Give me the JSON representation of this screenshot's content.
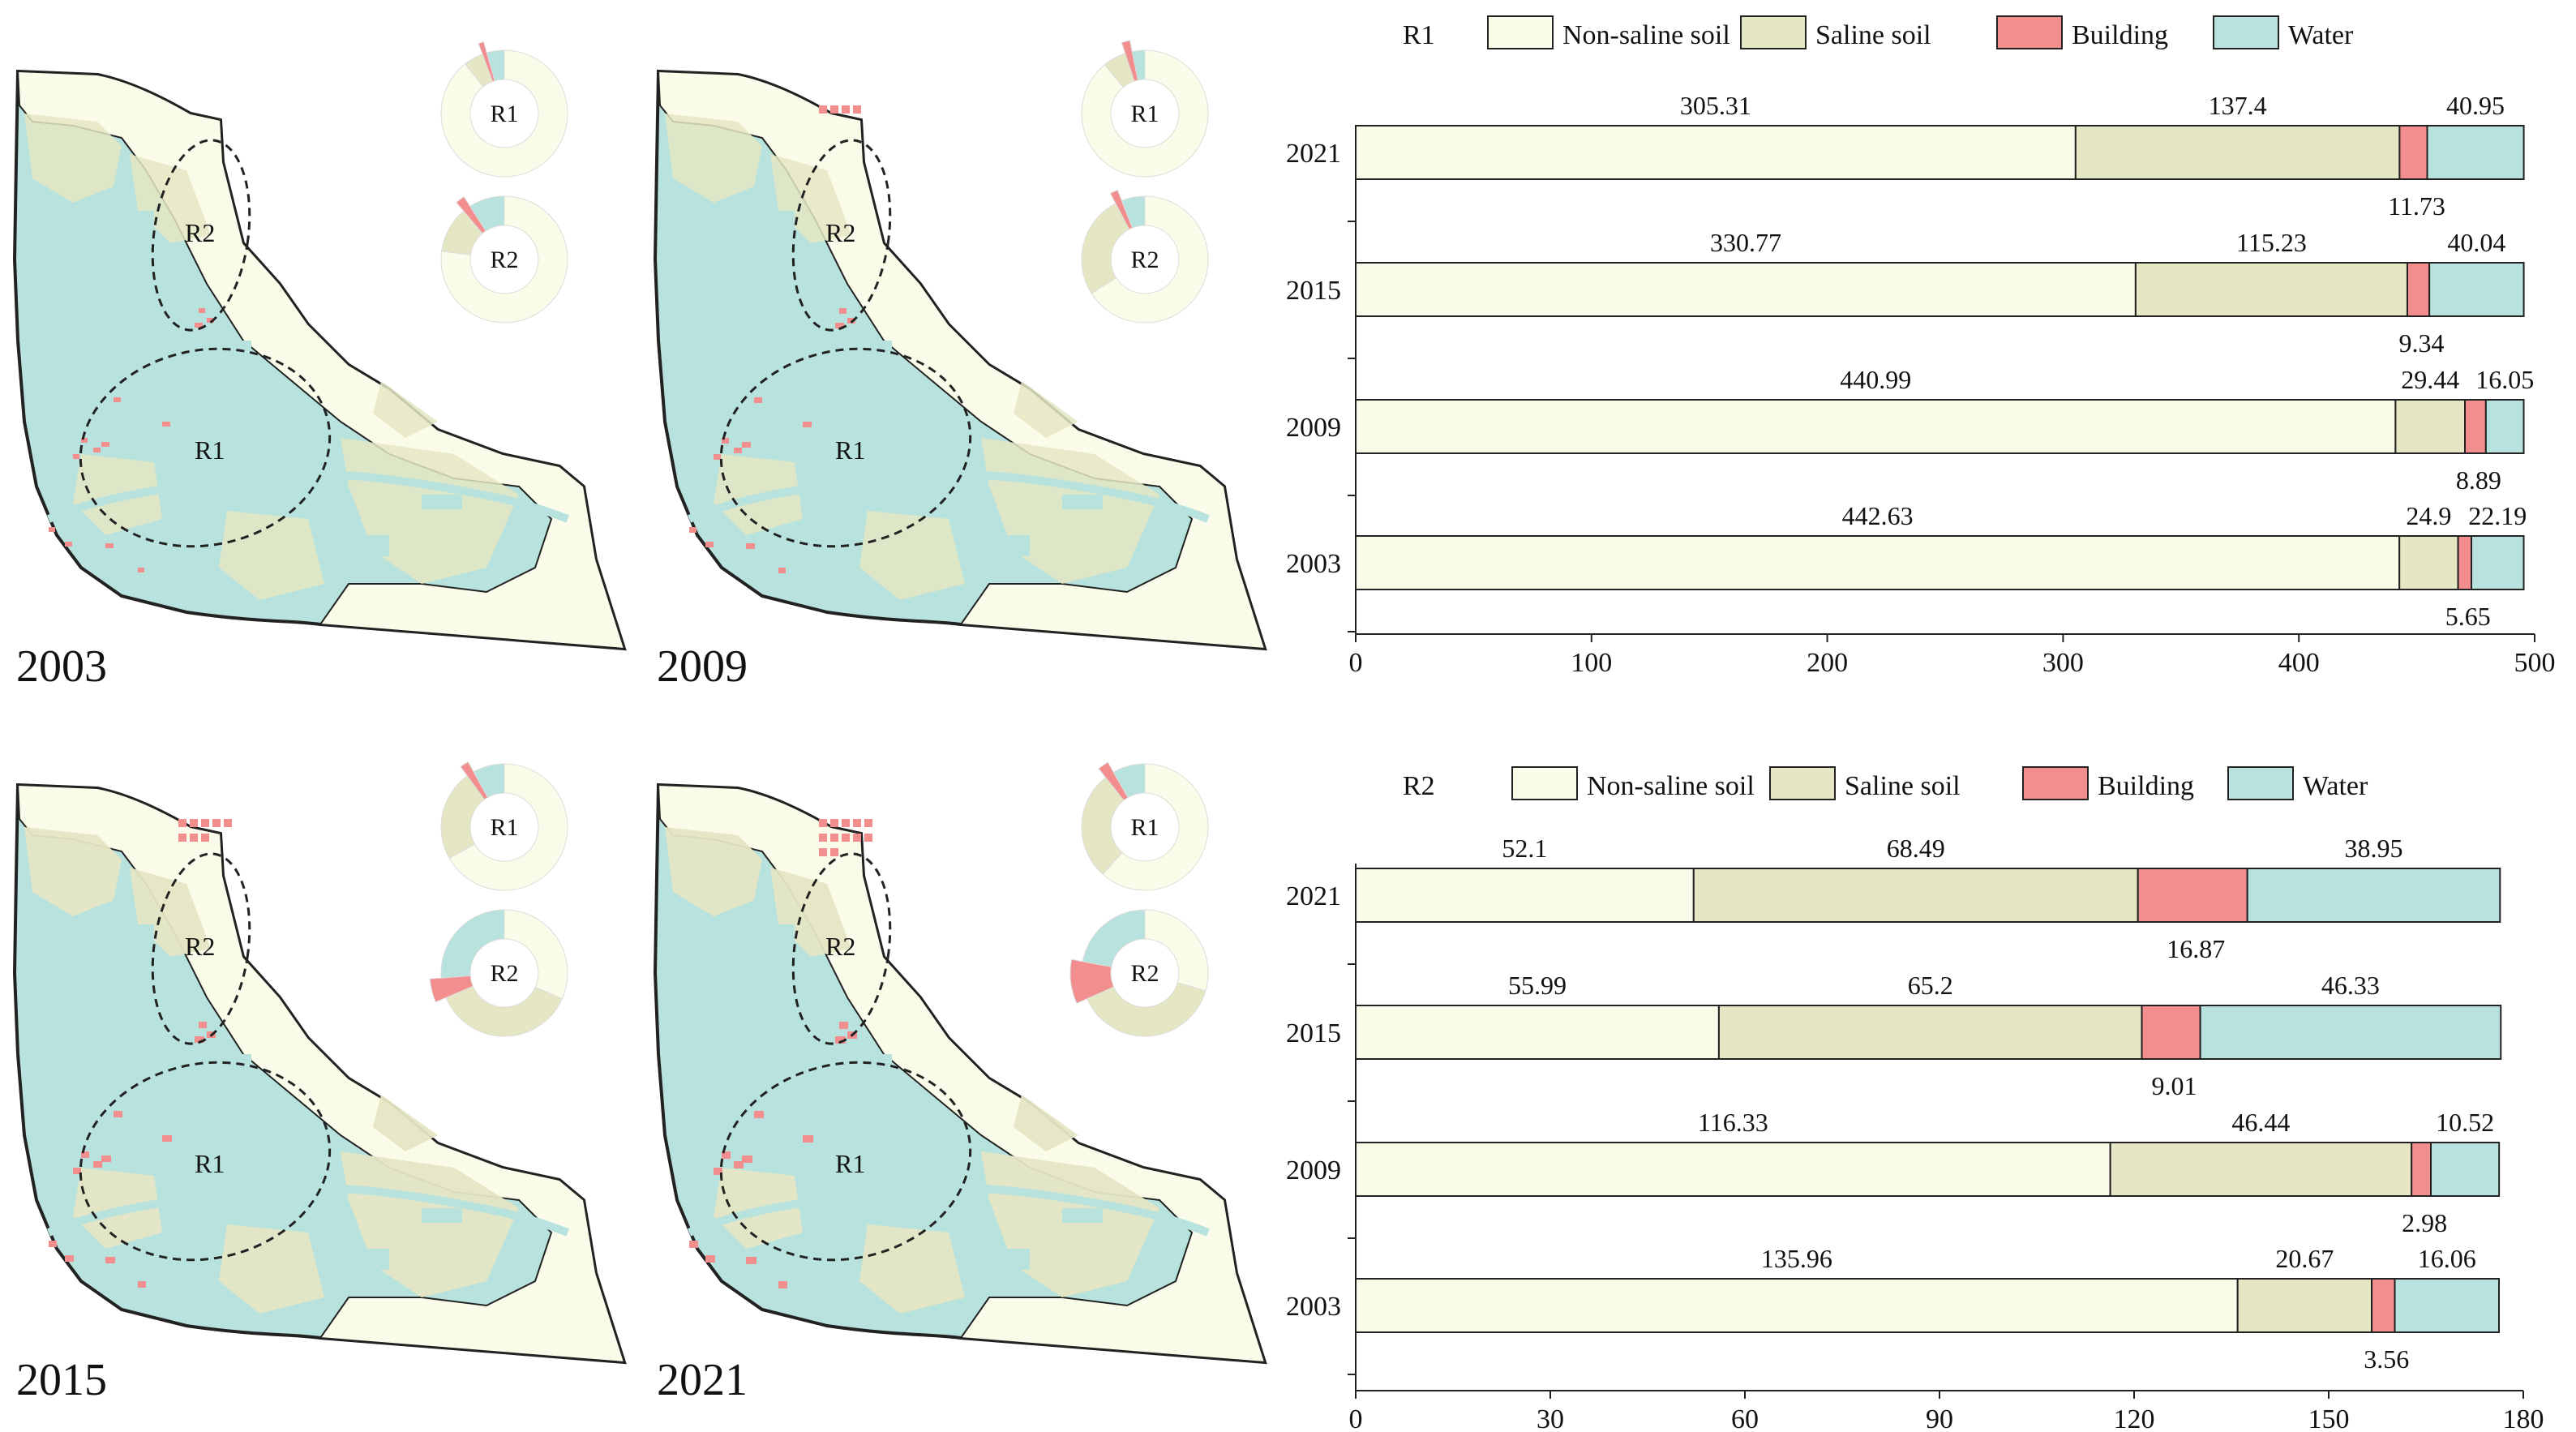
{
  "colors": {
    "non_saline": "#fbfbe9",
    "saline": "#e4e6c4",
    "building": "#f28e8e",
    "water": "#b8e2dd",
    "outline": "#222222"
  },
  "maps": [
    {
      "year": "2003",
      "region_labels": [
        "R1",
        "R2"
      ],
      "donuts": [
        {
          "label": "R1",
          "values": [
            442.63,
            24.9,
            5.65,
            22.19
          ]
        },
        {
          "label": "R2",
          "values": [
            135.96,
            20.67,
            3.56,
            16.06
          ]
        }
      ]
    },
    {
      "year": "2009",
      "region_labels": [
        "R1",
        "R2"
      ],
      "donuts": [
        {
          "label": "R1",
          "values": [
            440.99,
            29.44,
            8.89,
            16.05
          ]
        },
        {
          "label": "R2",
          "values": [
            116.33,
            46.44,
            2.98,
            10.52
          ]
        }
      ]
    },
    {
      "year": "2015",
      "region_labels": [
        "R1",
        "R2"
      ],
      "donuts": [
        {
          "label": "R1",
          "values": [
            330.77,
            115.23,
            9.34,
            40.04
          ]
        },
        {
          "label": "R2",
          "values": [
            55.99,
            65.2,
            9.01,
            46.33
          ]
        }
      ]
    },
    {
      "year": "2021",
      "region_labels": [
        "R1",
        "R2"
      ],
      "donuts": [
        {
          "label": "R1",
          "values": [
            305.31,
            137.4,
            11.73,
            40.95
          ]
        },
        {
          "label": "R2",
          "values": [
            52.1,
            68.49,
            16.87,
            38.95
          ]
        }
      ]
    }
  ],
  "chart_data": [
    {
      "type": "bar",
      "orientation": "horizontal",
      "stacked": true,
      "title": "R1",
      "legend": [
        "Non-saline soil",
        "Saline soil",
        "Building",
        "Water"
      ],
      "legend_position": "top",
      "categories": [
        "2021",
        "2015",
        "2009",
        "2003"
      ],
      "series": [
        {
          "name": "Non-saline soil",
          "values": [
            305.31,
            330.77,
            440.99,
            442.63
          ]
        },
        {
          "name": "Saline soil",
          "values": [
            137.4,
            115.23,
            29.44,
            24.9
          ]
        },
        {
          "name": "Building",
          "values": [
            11.73,
            9.34,
            8.89,
            5.65
          ]
        },
        {
          "name": "Water",
          "values": [
            40.95,
            40.04,
            16.05,
            22.19
          ]
        }
      ],
      "labels": [
        {
          "top": [
            "305.31",
            "137.4",
            "40.95"
          ],
          "bottom": "11.73"
        },
        {
          "top": [
            "330.77",
            "115.23",
            "40.04"
          ],
          "bottom": "9.34"
        },
        {
          "top": [
            "440.99",
            "29.44",
            "16.05"
          ],
          "bottom": "8.89"
        },
        {
          "top": [
            "442.63",
            "24.9",
            "22.19"
          ],
          "bottom": "5.65"
        }
      ],
      "xlim": [
        0,
        500
      ],
      "xticks": [
        0,
        100,
        200,
        300,
        400,
        500
      ],
      "xtick_labels": [
        "0",
        "100",
        "200",
        "300",
        "400",
        "500"
      ],
      "xlabel": "",
      "ylabel": ""
    },
    {
      "type": "bar",
      "orientation": "horizontal",
      "stacked": true,
      "title": "R2",
      "legend": [
        "Non-saline soil",
        "Saline soil",
        "Building",
        "Water"
      ],
      "legend_position": "top",
      "categories": [
        "2021",
        "2015",
        "2009",
        "2003"
      ],
      "series": [
        {
          "name": "Non-saline soil",
          "values": [
            52.1,
            55.99,
            116.33,
            135.96
          ]
        },
        {
          "name": "Saline soil",
          "values": [
            68.49,
            65.2,
            46.44,
            20.67
          ]
        },
        {
          "name": "Building",
          "values": [
            16.87,
            9.01,
            2.98,
            3.56
          ]
        },
        {
          "name": "Water",
          "values": [
            38.95,
            46.33,
            10.52,
            16.06
          ]
        }
      ],
      "labels": [
        {
          "top": [
            "52.1",
            "68.49",
            "38.95"
          ],
          "bottom": "16.87"
        },
        {
          "top": [
            "55.99",
            "65.2",
            "46.33"
          ],
          "bottom": "9.01"
        },
        {
          "top": [
            "116.33",
            "46.44",
            "10.52"
          ],
          "bottom": "2.98"
        },
        {
          "top": [
            "135.96",
            "20.67",
            "16.06"
          ],
          "bottom": "3.56"
        }
      ],
      "xlim": [
        0,
        180
      ],
      "xticks": [
        0,
        30,
        60,
        90,
        120,
        150,
        180
      ],
      "xtick_labels": [
        "0",
        "30",
        "60",
        "90",
        "120",
        "150",
        "180"
      ],
      "xlabel": "",
      "ylabel": ""
    }
  ]
}
